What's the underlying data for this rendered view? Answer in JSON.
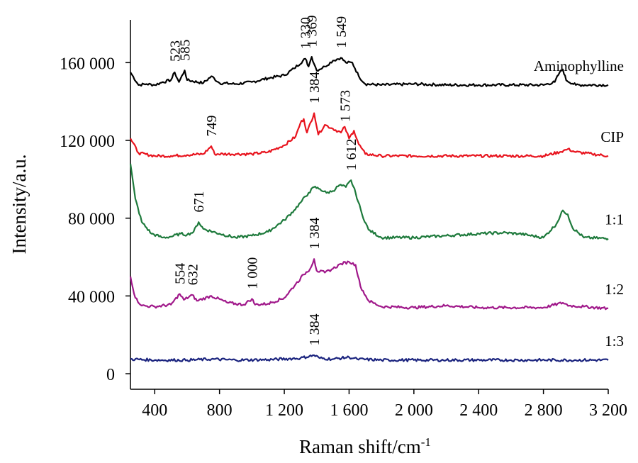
{
  "chart_data": {
    "type": "line",
    "title": "",
    "xlabel": "Raman shift/cm",
    "xlabel_superscript": "-1",
    "ylabel": "Intensity/a.u.",
    "xlim": [
      250,
      3200
    ],
    "ylim": [
      -8000,
      182000
    ],
    "x_ticks": [
      {
        "value": 400,
        "label": "400"
      },
      {
        "value": 800,
        "label": "800"
      },
      {
        "value": 1200,
        "label": "1 200"
      },
      {
        "value": 1600,
        "label": "1 600"
      },
      {
        "value": 2000,
        "label": "2 000"
      },
      {
        "value": 2400,
        "label": "2 400"
      },
      {
        "value": 2800,
        "label": "2 800"
      },
      {
        "value": 3200,
        "label": "3 200"
      }
    ],
    "y_ticks": [
      {
        "value": 0,
        "label": "0"
      },
      {
        "value": 40000,
        "label": "40 000"
      },
      {
        "value": 80000,
        "label": "80 000"
      },
      {
        "value": 120000,
        "label": "120 000"
      },
      {
        "value": 160000,
        "label": "160 000"
      }
    ],
    "grid": false,
    "series": [
      {
        "name": "Aminophylline",
        "color": "#000000",
        "points": [
          [
            250,
            155000
          ],
          [
            300,
            148500
          ],
          [
            350,
            149000
          ],
          [
            400,
            148500
          ],
          [
            450,
            150000
          ],
          [
            500,
            151000
          ],
          [
            523,
            155000
          ],
          [
            550,
            150000
          ],
          [
            585,
            156000
          ],
          [
            600,
            151000
          ],
          [
            700,
            149500
          ],
          [
            750,
            153000
          ],
          [
            800,
            149500
          ],
          [
            900,
            149000
          ],
          [
            1000,
            150000
          ],
          [
            1100,
            152000
          ],
          [
            1200,
            153500
          ],
          [
            1260,
            157000
          ],
          [
            1330,
            162000
          ],
          [
            1350,
            158000
          ],
          [
            1369,
            163000
          ],
          [
            1400,
            156000
          ],
          [
            1450,
            158000
          ],
          [
            1500,
            161000
          ],
          [
            1549,
            162500
          ],
          [
            1580,
            160000
          ],
          [
            1620,
            160000
          ],
          [
            1660,
            153000
          ],
          [
            1700,
            149000
          ],
          [
            1800,
            148500
          ],
          [
            2000,
            149000
          ],
          [
            2200,
            148500
          ],
          [
            2400,
            148500
          ],
          [
            2600,
            148500
          ],
          [
            2800,
            148500
          ],
          [
            2870,
            150000
          ],
          [
            2900,
            155000
          ],
          [
            2920,
            156500
          ],
          [
            2940,
            151000
          ],
          [
            3000,
            148500
          ],
          [
            3200,
            148500
          ]
        ]
      },
      {
        "name": "CIP",
        "color": "#e8141e",
        "points": [
          [
            250,
            121000
          ],
          [
            300,
            113500
          ],
          [
            400,
            112000
          ],
          [
            500,
            112000
          ],
          [
            600,
            112500
          ],
          [
            700,
            113000
          ],
          [
            749,
            117000
          ],
          [
            770,
            113000
          ],
          [
            900,
            113000
          ],
          [
            1000,
            113000
          ],
          [
            1100,
            114000
          ],
          [
            1200,
            117500
          ],
          [
            1270,
            122000
          ],
          [
            1300,
            129000
          ],
          [
            1320,
            131000
          ],
          [
            1340,
            124000
          ],
          [
            1384,
            134000
          ],
          [
            1410,
            123000
          ],
          [
            1450,
            128000
          ],
          [
            1500,
            126000
          ],
          [
            1550,
            124000
          ],
          [
            1573,
            127000
          ],
          [
            1600,
            121000
          ],
          [
            1630,
            125000
          ],
          [
            1660,
            118000
          ],
          [
            1700,
            113000
          ],
          [
            1800,
            112000
          ],
          [
            2000,
            112000
          ],
          [
            2500,
            112000
          ],
          [
            2800,
            112000
          ],
          [
            2900,
            114000
          ],
          [
            2950,
            115500
          ],
          [
            3000,
            114000
          ],
          [
            3100,
            113000
          ],
          [
            3200,
            112000
          ]
        ]
      },
      {
        "name": "1:1",
        "color": "#1e7a3c",
        "points": [
          [
            250,
            108000
          ],
          [
            280,
            90000
          ],
          [
            320,
            78000
          ],
          [
            380,
            72000
          ],
          [
            450,
            70000
          ],
          [
            500,
            70500
          ],
          [
            560,
            72000
          ],
          [
            600,
            71500
          ],
          [
            640,
            73000
          ],
          [
            671,
            78000
          ],
          [
            700,
            74500
          ],
          [
            800,
            72000
          ],
          [
            900,
            70000
          ],
          [
            1000,
            71000
          ],
          [
            1100,
            73000
          ],
          [
            1200,
            79000
          ],
          [
            1260,
            84000
          ],
          [
            1300,
            88000
          ],
          [
            1350,
            93000
          ],
          [
            1384,
            96000
          ],
          [
            1420,
            95000
          ],
          [
            1460,
            93000
          ],
          [
            1500,
            94000
          ],
          [
            1540,
            97000
          ],
          [
            1580,
            96000
          ],
          [
            1612,
            99500
          ],
          [
            1640,
            93000
          ],
          [
            1680,
            82000
          ],
          [
            1720,
            74000
          ],
          [
            1800,
            70000
          ],
          [
            2000,
            70000
          ],
          [
            2200,
            71000
          ],
          [
            2400,
            72000
          ],
          [
            2550,
            72500
          ],
          [
            2650,
            72000
          ],
          [
            2800,
            70000
          ],
          [
            2880,
            77000
          ],
          [
            2920,
            84000
          ],
          [
            2950,
            82000
          ],
          [
            2980,
            75000
          ],
          [
            3050,
            70000
          ],
          [
            3200,
            69500
          ]
        ]
      },
      {
        "name": "1:2",
        "color": "#a0188a",
        "points": [
          [
            250,
            50000
          ],
          [
            280,
            39000
          ],
          [
            320,
            35000
          ],
          [
            400,
            34500
          ],
          [
            500,
            35500
          ],
          [
            554,
            41000
          ],
          [
            580,
            38000
          ],
          [
            632,
            40500
          ],
          [
            660,
            37500
          ],
          [
            750,
            40000
          ],
          [
            850,
            36500
          ],
          [
            950,
            35500
          ],
          [
            1000,
            38500
          ],
          [
            1020,
            35500
          ],
          [
            1100,
            36000
          ],
          [
            1200,
            39000
          ],
          [
            1270,
            46000
          ],
          [
            1320,
            51000
          ],
          [
            1360,
            54000
          ],
          [
            1384,
            59000
          ],
          [
            1400,
            53000
          ],
          [
            1450,
            52000
          ],
          [
            1500,
            54000
          ],
          [
            1550,
            56500
          ],
          [
            1600,
            57500
          ],
          [
            1640,
            56000
          ],
          [
            1670,
            45000
          ],
          [
            1720,
            37500
          ],
          [
            1800,
            34500
          ],
          [
            2000,
            34000
          ],
          [
            2200,
            35000
          ],
          [
            2400,
            34000
          ],
          [
            2800,
            34000
          ],
          [
            2920,
            36500
          ],
          [
            2960,
            35000
          ],
          [
            3050,
            34500
          ],
          [
            3200,
            33500
          ]
        ]
      },
      {
        "name": "1:3",
        "color": "#1a237e",
        "points": [
          [
            250,
            7500
          ],
          [
            400,
            7000
          ],
          [
            600,
            7000
          ],
          [
            750,
            7500
          ],
          [
            900,
            7000
          ],
          [
            1100,
            7200
          ],
          [
            1300,
            8000
          ],
          [
            1384,
            9500
          ],
          [
            1420,
            8000
          ],
          [
            1500,
            7500
          ],
          [
            1600,
            8500
          ],
          [
            1650,
            7500
          ],
          [
            1800,
            7000
          ],
          [
            2200,
            7000
          ],
          [
            2600,
            7000
          ],
          [
            3000,
            7000
          ],
          [
            3200,
            7000
          ]
        ]
      }
    ],
    "annotations": [
      {
        "text": "523",
        "x": 523,
        "y": 160500,
        "series": "Aminophylline"
      },
      {
        "text": "585",
        "x": 585,
        "y": 161000,
        "series": "Aminophylline"
      },
      {
        "text": "1 330",
        "x": 1330,
        "y": 167000,
        "series": "Aminophylline"
      },
      {
        "text": "1 369",
        "x": 1369,
        "y": 168000,
        "series": "Aminophylline"
      },
      {
        "text": "1 549",
        "x": 1549,
        "y": 167500,
        "series": "Aminophylline"
      },
      {
        "text": "749",
        "x": 749,
        "y": 122000,
        "series": "CIP"
      },
      {
        "text": "1 384",
        "x": 1384,
        "y": 139000,
        "series": "CIP"
      },
      {
        "text": "1 573",
        "x": 1573,
        "y": 129500,
        "series": "CIP"
      },
      {
        "text": "671",
        "x": 671,
        "y": 83000,
        "series": "1:1"
      },
      {
        "text": "1 612",
        "x": 1612,
        "y": 104500,
        "series": "1:1"
      },
      {
        "text": "554",
        "x": 554,
        "y": 46000,
        "series": "1:2"
      },
      {
        "text": "632",
        "x": 632,
        "y": 45500,
        "series": "1:2"
      },
      {
        "text": "1 000",
        "x": 1000,
        "y": 43500,
        "series": "1:2"
      },
      {
        "text": "1 384",
        "x": 1384,
        "y": 64000,
        "series": "1:2"
      },
      {
        "text": "1 384",
        "x": 1384,
        "y": 14500,
        "series": "1:3"
      }
    ],
    "legend": "inline labels at right end of each series"
  }
}
